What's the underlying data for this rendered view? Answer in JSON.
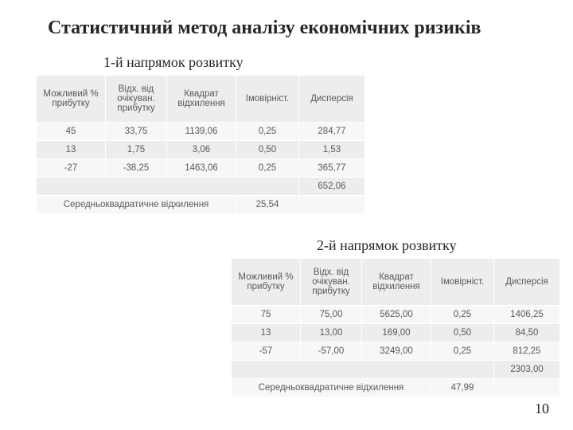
{
  "title": "Статистичний метод аналізу економічних ризиків",
  "page_number": "10",
  "subtitle1": "1-й напрямок розвитку",
  "subtitle2": "2-й напрямок розвитку",
  "columns": {
    "c0": "Можливий % прибутку",
    "c1": "Відх. від очікуван. прибутку",
    "c2": "Квадрат відхилення",
    "c3": "Імовірніст.",
    "c4": "Дисперсія"
  },
  "stddev_label": "Середньоквадратичне відхилення",
  "table1": {
    "rows": [
      {
        "c0": "45",
        "c1": "33,75",
        "c2": "1139,06",
        "c3": "0,25",
        "c4": "284,77"
      },
      {
        "c0": "13",
        "c1": "1,75",
        "c2": "3,06",
        "c3": "0,50",
        "c4": "1,53"
      },
      {
        "c0": "-27",
        "c1": "-38,25",
        "c2": "1463,06",
        "c3": "0,25",
        "c4": "365,77"
      }
    ],
    "sum": "652,06",
    "stddev": "25,54"
  },
  "table2": {
    "rows": [
      {
        "c0": "75",
        "c1": "75,00",
        "c2": "5625,00",
        "c3": "0,25",
        "c4": "1406,25"
      },
      {
        "c0": "13",
        "c1": "13,00",
        "c2": "169,00",
        "c3": "0,50",
        "c4": "84,50"
      },
      {
        "c0": "-57",
        "c1": "-57,00",
        "c2": "3249,00",
        "c3": "0,25",
        "c4": "812,25"
      }
    ],
    "sum": "2303,00",
    "stddev": "47,99"
  }
}
